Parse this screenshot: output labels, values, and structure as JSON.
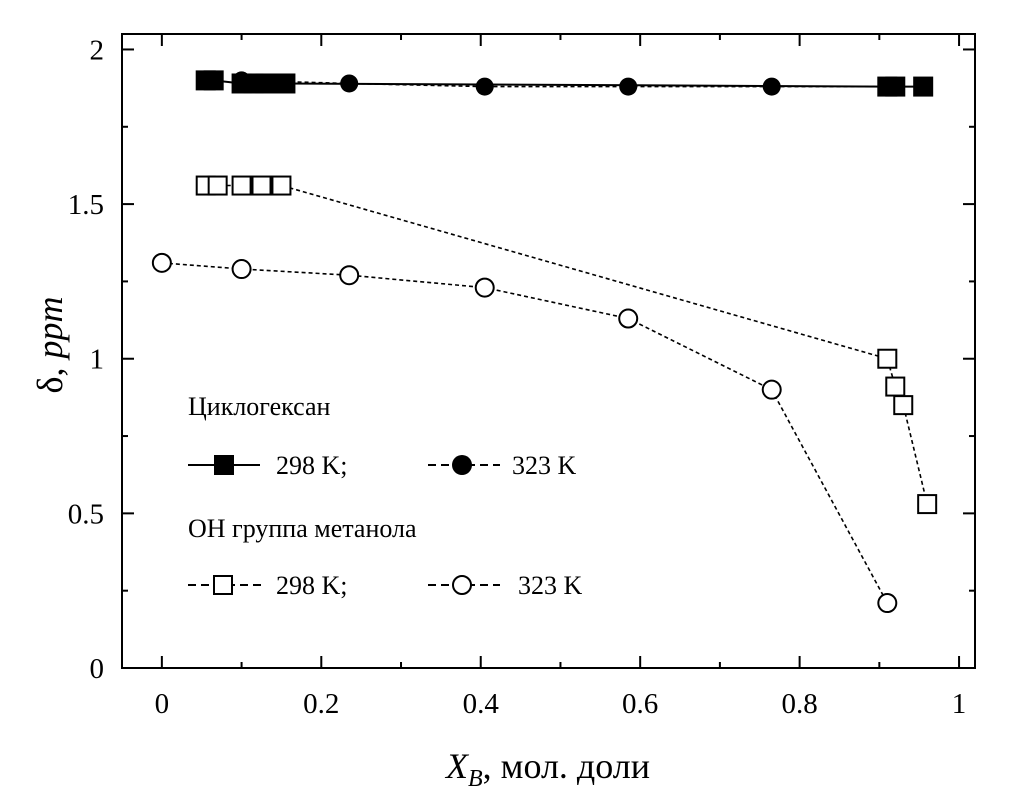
{
  "chart_data": {
    "type": "line",
    "xlabel_main": "X",
    "xlabel_sub": "B",
    "xlabel_rest": ", мол. доли",
    "ylabel_greek": "δ, ",
    "ylabel_italic": "ppm",
    "xlim": [
      -0.05,
      1.02
    ],
    "ylim": [
      0,
      2.05
    ],
    "xticks": [
      0,
      0.2,
      0.4,
      0.6,
      0.8,
      1
    ],
    "xtick_labels": [
      "0",
      "0.2",
      "0.4",
      "0.6",
      "0.8",
      "1"
    ],
    "yticks": [
      0,
      0.5,
      1,
      1.5,
      2
    ],
    "ytick_labels": [
      "0",
      "0.5",
      "1",
      "1.5",
      "2"
    ],
    "grid": false,
    "legend_groups": [
      {
        "title": "Циклогексан",
        "entries": [
          "298 K;",
          "323 K"
        ]
      },
      {
        "title": "OH группа метанола",
        "entries": [
          "298 K;",
          "323 K"
        ]
      }
    ],
    "series": [
      {
        "marker": "square-filled",
        "line": "solid",
        "x": [
          0.055,
          0.065,
          0.1,
          0.115,
          0.13,
          0.155,
          0.91,
          0.92,
          0.955
        ],
        "y": [
          1.9,
          1.9,
          1.89,
          1.89,
          1.89,
          1.89,
          1.88,
          1.88,
          1.88
        ]
      },
      {
        "marker": "circle-filled",
        "line": "dashed",
        "x": [
          0.1,
          0.235,
          0.405,
          0.585,
          0.765,
          0.91
        ],
        "y": [
          1.9,
          1.89,
          1.88,
          1.88,
          1.88,
          1.88
        ]
      },
      {
        "marker": "square-open",
        "line": "dashed",
        "x": [
          0.055,
          0.07,
          0.1,
          0.125,
          0.15,
          0.91,
          0.92,
          0.93,
          0.96
        ],
        "y": [
          1.56,
          1.56,
          1.56,
          1.56,
          1.56,
          1.0,
          0.91,
          0.85,
          0.53
        ]
      },
      {
        "marker": "circle-open",
        "line": "dashed",
        "x": [
          0.0,
          0.1,
          0.235,
          0.405,
          0.585,
          0.765,
          0.91
        ],
        "y": [
          1.31,
          1.29,
          1.27,
          1.23,
          1.13,
          0.9,
          0.21
        ]
      }
    ]
  }
}
